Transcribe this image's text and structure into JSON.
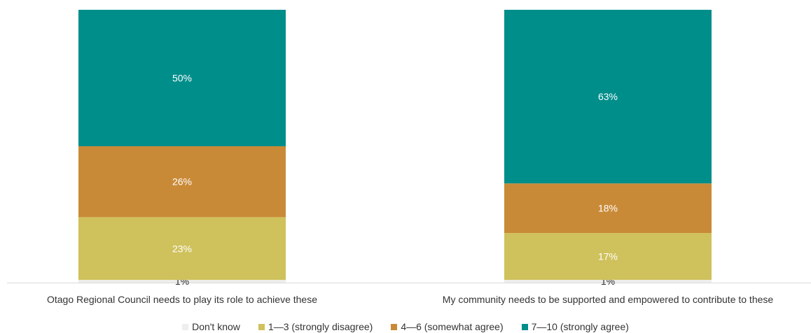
{
  "chart_data": {
    "type": "bar",
    "stacked": true,
    "percent_stacked": true,
    "categories": [
      "Otago Regional Council needs to play its role to achieve these",
      "My community needs to be supported and empowered to contribute to these"
    ],
    "series": [
      {
        "name": "Don't know",
        "color": "#eeeeee",
        "values": [
          1,
          1
        ],
        "labels": [
          "1%",
          "1%"
        ]
      },
      {
        "name": "1—3 (strongly disagree)",
        "color": "#cfc15c",
        "values": [
          23,
          17
        ],
        "labels": [
          "23%",
          "17%"
        ]
      },
      {
        "name": "4—6 (somewhat agree)",
        "color": "#c98a37",
        "values": [
          26,
          18
        ],
        "labels": [
          "26%",
          "18%"
        ]
      },
      {
        "name": "7—10 (strongly agree)",
        "color": "#008e8b",
        "values": [
          50,
          63
        ],
        "labels": [
          "50%",
          "63%"
        ]
      }
    ],
    "ylim": [
      0,
      100
    ],
    "legend_position": "bottom",
    "grid": false
  }
}
